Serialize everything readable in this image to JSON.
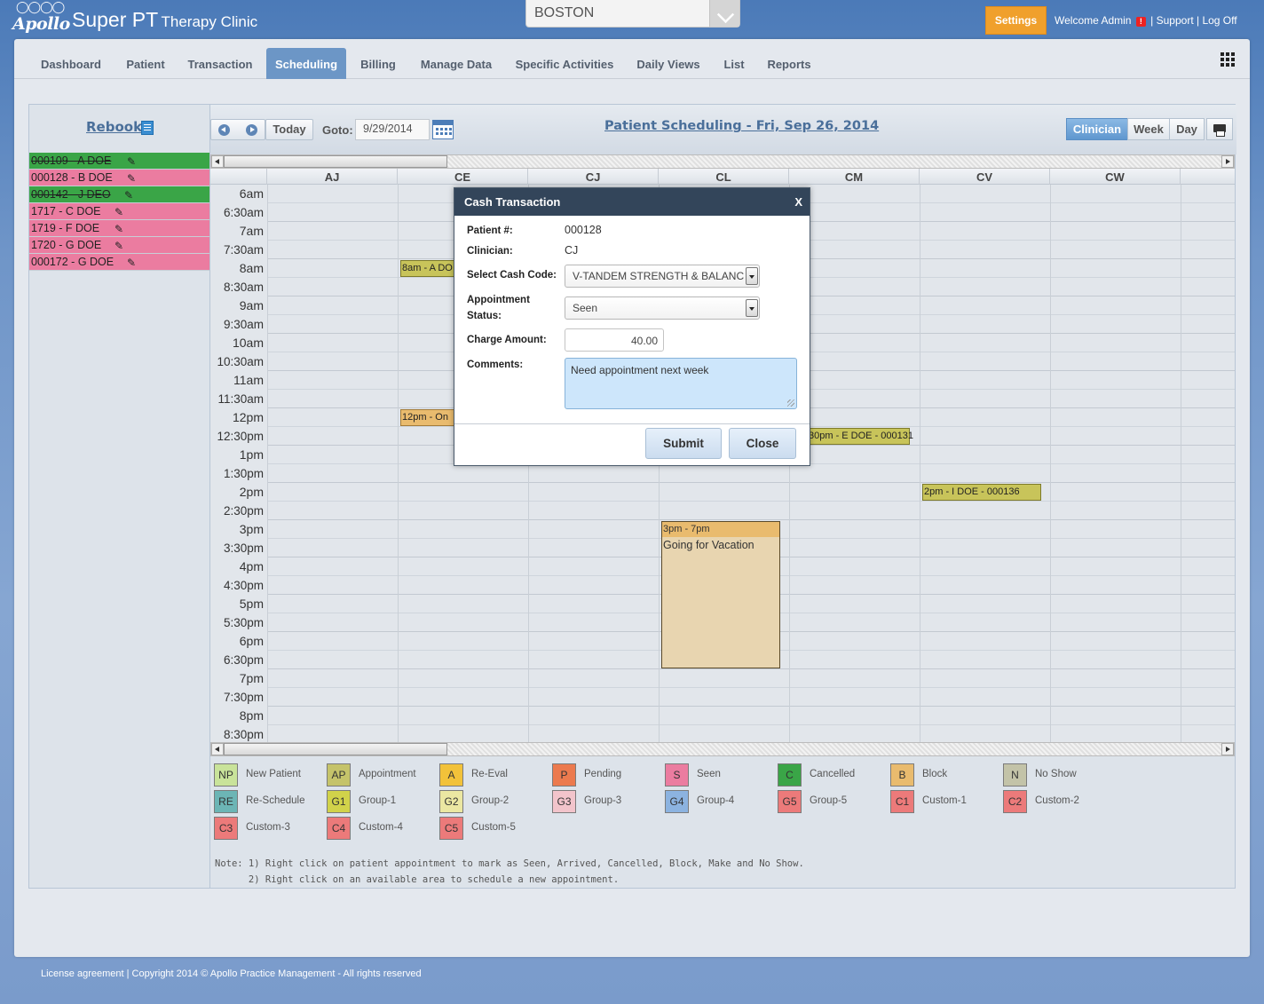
{
  "header": {
    "logo_text": "Apollo",
    "app_name_big": "Super PT",
    "app_name_small": "Therapy Clinic",
    "location": "BOSTON",
    "settings_label": "Settings",
    "welcome": "Welcome Admin",
    "alert_glyph": "!",
    "separator": " | ",
    "support_label": "Support",
    "logoff_label": "Log Off"
  },
  "nav": {
    "tabs": [
      {
        "label": "Dashboard"
      },
      {
        "label": "Patient"
      },
      {
        "label": "Transaction"
      },
      {
        "label": "Scheduling"
      },
      {
        "label": "Billing"
      },
      {
        "label": "Manage Data"
      },
      {
        "label": "Specific Activities"
      },
      {
        "label": "Daily Views"
      },
      {
        "label": "List"
      },
      {
        "label": "Reports"
      }
    ],
    "active_tab": "Scheduling"
  },
  "rebook": {
    "title": "Rebook",
    "items": [
      {
        "text": "000109 - A DOE",
        "status": "green"
      },
      {
        "text": "000128 - B DOE",
        "status": "pink"
      },
      {
        "text": "000142 - J DEO",
        "status": "green"
      },
      {
        "text": "1717 - C DOE",
        "status": "pink"
      },
      {
        "text": "1719 - F DOE",
        "status": "pink"
      },
      {
        "text": "1720 - G DOE",
        "status": "pink"
      },
      {
        "text": "000172 - G DOE",
        "status": "pink"
      }
    ]
  },
  "toolbar": {
    "today_label": "Today",
    "goto_label": "Goto:",
    "goto_value": "9/29/2014",
    "title": "Patient Scheduling - Fri, Sep 26, 2014",
    "views": [
      "Clinician",
      "Week",
      "Day"
    ],
    "active_view": "Clinician"
  },
  "grid": {
    "columns": [
      "AJ",
      "CE",
      "CJ",
      "CL",
      "CM",
      "CV",
      "CW"
    ],
    "times": [
      "6am",
      "6:30am",
      "7am",
      "7:30am",
      "8am",
      "8:30am",
      "9am",
      "9:30am",
      "10am",
      "10:30am",
      "11am",
      "11:30am",
      "12pm",
      "12:30pm",
      "1pm",
      "1:30pm",
      "2pm",
      "2:30pm",
      "3pm",
      "3:30pm",
      "4pm",
      "4:30pm",
      "5pm",
      "5:30pm",
      "6pm",
      "6:30pm",
      "7pm",
      "7:30pm",
      "8pm",
      "8:30pm"
    ],
    "appointments": [
      {
        "text": "8am - A DO",
        "style": "olive"
      },
      {
        "text": "12pm - On",
        "style": "block"
      },
      {
        "text": "30pm - E DOE - 000131",
        "style": "olive"
      },
      {
        "text": "2pm - I DOE - 000136",
        "style": "olive"
      }
    ],
    "vacation": {
      "time": "3pm - 7pm",
      "text": "Going for Vacation"
    }
  },
  "legend": [
    {
      "code": "NP",
      "name": "New Patient",
      "color": "#c9e39a"
    },
    {
      "code": "AP",
      "name": "Appointment",
      "color": "#c5c36a"
    },
    {
      "code": "A",
      "name": "Re-Eval",
      "color": "#f2c23a"
    },
    {
      "code": "P",
      "name": "Pending",
      "color": "#ec7a4e"
    },
    {
      "code": "S",
      "name": "Seen",
      "color": "#eb7ca0"
    },
    {
      "code": "C",
      "name": "Cancelled",
      "color": "#3aa547"
    },
    {
      "code": "B",
      "name": "Block",
      "color": "#e9bb6e"
    },
    {
      "code": "N",
      "name": "No Show",
      "color": "#c3c3a8"
    },
    {
      "code": "RE",
      "name": "Re-Schedule",
      "color": "#6cb5b5"
    },
    {
      "code": "G1",
      "name": "Group-1",
      "color": "#d1d24a"
    },
    {
      "code": "G2",
      "name": "Group-2",
      "color": "#ebe7a2"
    },
    {
      "code": "G3",
      "name": "Group-3",
      "color": "#f2c4cb"
    },
    {
      "code": "G4",
      "name": "Group-4",
      "color": "#8cb3e0"
    },
    {
      "code": "G5",
      "name": "Group-5",
      "color": "#ec7a7a"
    },
    {
      "code": "C1",
      "name": "Custom-1",
      "color": "#ec7a7a"
    },
    {
      "code": "C2",
      "name": "Custom-2",
      "color": "#ec7a7a"
    },
    {
      "code": "C3",
      "name": "Custom-3",
      "color": "#ec7a7a"
    },
    {
      "code": "C4",
      "name": "Custom-4",
      "color": "#ec7a7a"
    },
    {
      "code": "C5",
      "name": "Custom-5",
      "color": "#ec7a7a"
    }
  ],
  "note": "Note: 1) Right click on patient appointment to mark as Seen, Arrived, Cancelled, Block, Make and No Show.\n      2) Right click on an available area to schedule a new appointment.",
  "footer": "License agreement | Copyright 2014 © Apollo Practice Management - All rights reserved",
  "modal": {
    "title": "Cash Transaction",
    "close_glyph": "X",
    "patient_label": "Patient #:",
    "patient_value": "000128",
    "clinician_label": "Clinician:",
    "clinician_value": "CJ",
    "cash_code_label": "Select Cash Code:",
    "cash_code_value": "V-TANDEM STRENGTH & BALANC",
    "status_label_1": "Appointment",
    "status_label_2": "Status:",
    "status_value": "Seen",
    "charge_label": "Charge Amount:",
    "charge_value": "40.00",
    "comments_label": "Comments:",
    "comments_value": "Need appointment next week",
    "submit_label": "Submit",
    "close_label": "Close"
  }
}
